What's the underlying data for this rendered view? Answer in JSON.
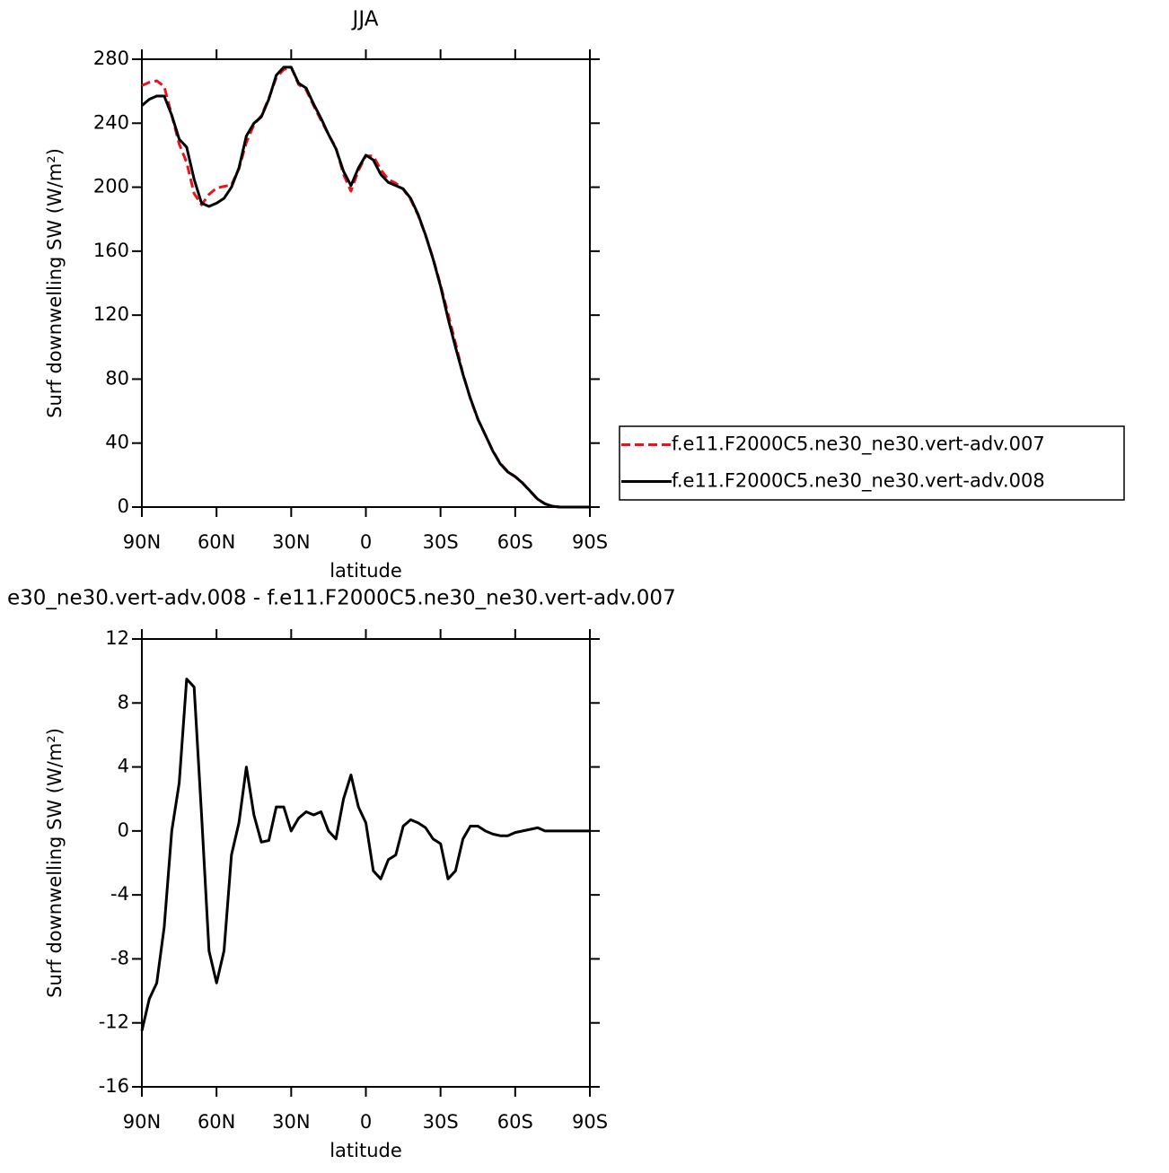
{
  "chart_data": [
    {
      "type": "line",
      "title": "JJA",
      "xlabel": "latitude",
      "ylabel": "Surf downwelling SW (W/m²)",
      "x": [
        90,
        87,
        84,
        81,
        78,
        75,
        72,
        69,
        66,
        63,
        60,
        57,
        54,
        51,
        48,
        45,
        42,
        39,
        36,
        33,
        30,
        27,
        24,
        21,
        18,
        15,
        12,
        9,
        6,
        3,
        0,
        -3,
        -6,
        -9,
        -12,
        -15,
        -18,
        -21,
        -24,
        -27,
        -30,
        -33,
        -36,
        -39,
        -42,
        -45,
        -48,
        -51,
        -54,
        -57,
        -60,
        -63,
        -66,
        -69,
        -72,
        -75,
        -78,
        -81,
        -84,
        -87,
        -90
      ],
      "series": [
        {
          "name": "f.e11.F2000C5.ne30_ne30.vert-adv.007",
          "color": "#e8141c",
          "dashed": true,
          "values": [
            263.5,
            265.5,
            266.5,
            263,
            245,
            227,
            215.5,
            196,
            189,
            195.5,
            199.5,
            200.5,
            201.5,
            211.5,
            228,
            239,
            244.7,
            255.6,
            268.5,
            273.5,
            275,
            264.2,
            260.8,
            251,
            241.8,
            233,
            224.5,
            208,
            197.5,
            210.5,
            219.5,
            219.5,
            211,
            204.8,
            202.5,
            198.7,
            192.3,
            182.5,
            169.8,
            155.5,
            138.8,
            121,
            102.5,
            83.5,
            67.7,
            54.7,
            45,
            35.2,
            27.3,
            22.3,
            19.1,
            15,
            9.9,
            4.8,
            2,
            0.5,
            0,
            0,
            0,
            0,
            0
          ]
        },
        {
          "name": "f.e11.F2000C5.ne30_ne30.vert-adv.008",
          "color": "#000000",
          "dashed": false,
          "values": [
            251,
            255,
            257,
            257,
            245,
            230,
            225,
            205,
            190,
            188,
            190,
            193,
            200,
            212,
            232,
            240,
            244,
            255,
            270,
            275,
            275,
            265,
            262,
            252,
            243,
            233,
            224,
            210,
            201,
            212,
            220,
            217,
            208,
            203,
            201,
            199,
            193,
            183,
            170,
            155,
            138,
            118,
            100,
            83,
            68,
            55,
            45,
            35,
            27,
            22,
            19,
            15,
            10,
            5,
            2,
            0.5,
            0,
            0,
            0,
            0,
            0
          ]
        }
      ],
      "xlim": [
        90,
        -90
      ],
      "xticks": [
        {
          "value": 90,
          "label": "90N"
        },
        {
          "value": 60,
          "label": "60N"
        },
        {
          "value": 30,
          "label": "30N"
        },
        0,
        {
          "value": -30,
          "label": "30S"
        },
        {
          "value": -60,
          "label": "60S"
        },
        {
          "value": -90,
          "label": "90S"
        }
      ],
      "ylim": [
        0,
        280
      ],
      "yticks": [
        0,
        40,
        80,
        120,
        160,
        200,
        240,
        280
      ],
      "legend": "right"
    },
    {
      "type": "line",
      "title": "e30_ne30.vert-adv.008 - f.e11.F2000C5.ne30_ne30.vert-adv.007",
      "xlabel": "latitude",
      "ylabel": "Surf downwelling SW (W/m²)",
      "x": [
        90,
        87,
        84,
        81,
        78,
        75,
        72,
        69,
        66,
        63,
        60,
        57,
        54,
        51,
        48,
        45,
        42,
        39,
        36,
        33,
        30,
        27,
        24,
        21,
        18,
        15,
        12,
        9,
        6,
        3,
        0,
        -3,
        -6,
        -9,
        -12,
        -15,
        -18,
        -21,
        -24,
        -27,
        -30,
        -33,
        -36,
        -39,
        -42,
        -45,
        -48,
        -51,
        -54,
        -57,
        -60,
        -63,
        -66,
        -69,
        -72,
        -75,
        -78,
        -81,
        -84,
        -87,
        -90
      ],
      "color": "#000000",
      "values": [
        -12.5,
        -10.5,
        -9.5,
        -6,
        0,
        3,
        9.5,
        9,
        1,
        -7.5,
        -9.5,
        -7.5,
        -1.5,
        0.5,
        4,
        1,
        -0.7,
        -0.6,
        1.5,
        1.5,
        0,
        0.8,
        1.2,
        1,
        1.2,
        0,
        -0.5,
        2,
        3.5,
        1.5,
        0.5,
        -2.5,
        -3,
        -1.8,
        -1.5,
        0.3,
        0.7,
        0.5,
        0.2,
        -0.5,
        -0.8,
        -3,
        -2.5,
        -0.5,
        0.3,
        0.3,
        0,
        -0.2,
        -0.3,
        -0.3,
        -0.1,
        0,
        0.1,
        0.2,
        0,
        0,
        0,
        0,
        0,
        0,
        0
      ],
      "xlim": [
        90,
        -90
      ],
      "xticks": [
        {
          "value": 90,
          "label": "90N"
        },
        {
          "value": 60,
          "label": "60N"
        },
        {
          "value": 30,
          "label": "30N"
        },
        0,
        {
          "value": -30,
          "label": "30S"
        },
        {
          "value": -60,
          "label": "60S"
        },
        {
          "value": -90,
          "label": "90S"
        }
      ],
      "ylim": [
        -16,
        12
      ],
      "yticks": [
        -16,
        -12,
        -8,
        -4,
        0,
        4,
        8,
        12
      ]
    }
  ]
}
